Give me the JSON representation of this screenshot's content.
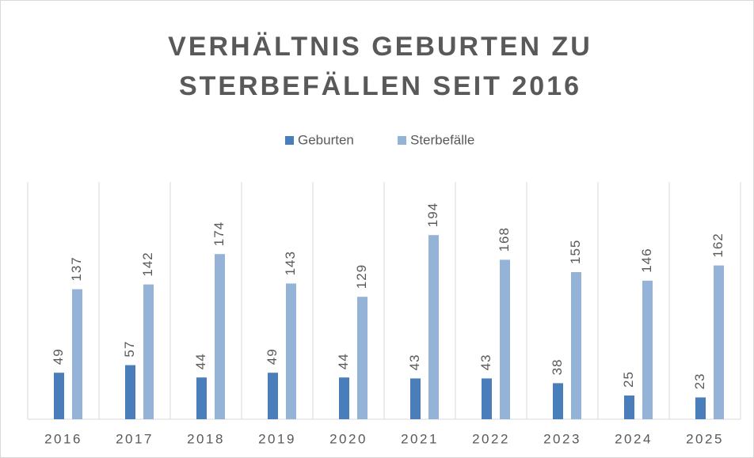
{
  "chart_data": {
    "type": "bar",
    "title": "VERHÄLTNIS GEBURTEN ZU STERBEFÄLLEN SEIT 2016",
    "categories": [
      "2016",
      "2017",
      "2018",
      "2019",
      "2020",
      "2021",
      "2022",
      "2023",
      "2024",
      "2025"
    ],
    "series": [
      {
        "name": "Geburten",
        "color": "#4a7ebb",
        "values": [
          49,
          57,
          44,
          49,
          44,
          43,
          43,
          38,
          25,
          23
        ]
      },
      {
        "name": "Sterbefälle",
        "color": "#95b3d7",
        "values": [
          137,
          142,
          174,
          143,
          129,
          194,
          168,
          155,
          146,
          162
        ]
      }
    ],
    "ylim": [
      0,
      250
    ],
    "legend": "top",
    "grid": true
  }
}
